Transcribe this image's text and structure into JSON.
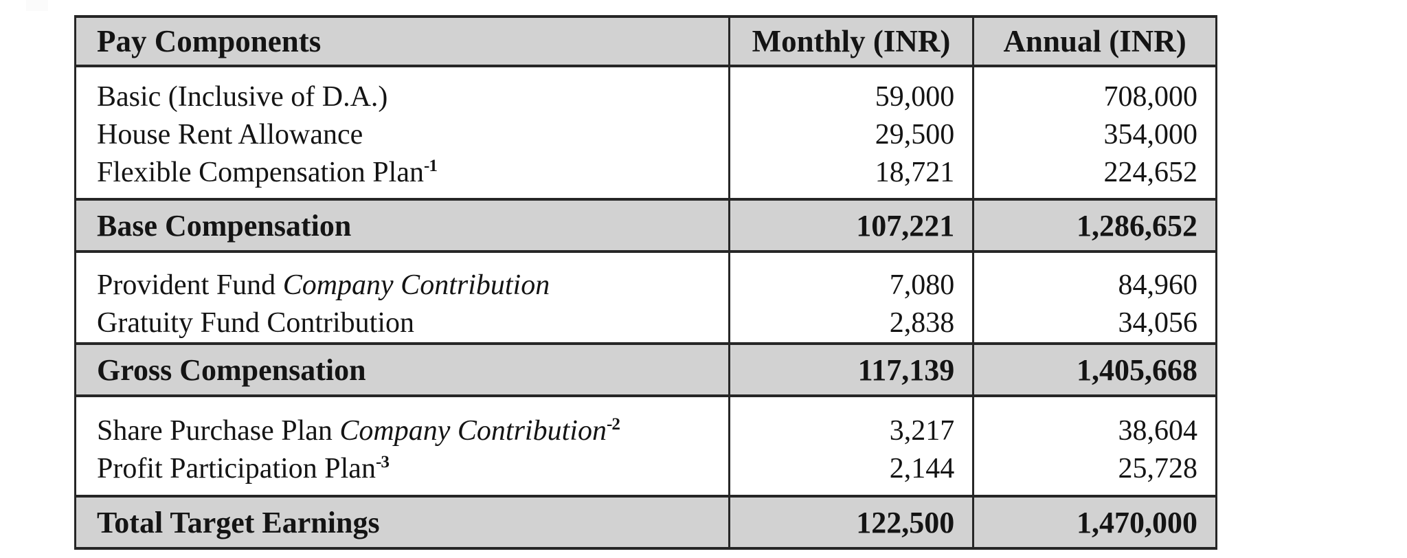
{
  "colors": {
    "band_bg": "#d2d2d2",
    "border": "#262626",
    "text": "#141414",
    "page_bg": "#ffffff"
  },
  "table": {
    "headers": [
      "Pay Components",
      "Monthly (INR)",
      "Annual (INR)"
    ],
    "sections": [
      {
        "type": "detail",
        "rows": [
          {
            "label": "Basic (Inclusive of D.A.)",
            "monthly": "59,000",
            "annual": "708,000"
          },
          {
            "label": "House Rent Allowance",
            "monthly": "29,500",
            "annual": "354,000"
          },
          {
            "label": "Flexible Compensation Plan",
            "label_sup": "-1",
            "monthly": "18,721",
            "annual": "224,652"
          }
        ]
      },
      {
        "type": "summary",
        "label": "Base Compensation",
        "monthly": "107,221",
        "annual": "1,286,652"
      },
      {
        "type": "detail",
        "rows": [
          {
            "label": "Provident Fund ",
            "label_italic": "Company Contribution",
            "monthly": "7,080",
            "annual": "84,960"
          },
          {
            "label": "Gratuity Fund Contribution",
            "monthly": "2,838",
            "annual": "34,056"
          }
        ]
      },
      {
        "type": "summary",
        "label": "Gross Compensation",
        "monthly": "117,139",
        "annual": "1,405,668"
      },
      {
        "type": "detail",
        "rows": [
          {
            "label": "Share Purchase Plan ",
            "label_italic": "Company Contribution",
            "label_sup": "-2",
            "monthly": "3,217",
            "annual": "38,604"
          },
          {
            "label": "Profit Participation Plan",
            "label_sup": "-3",
            "monthly": "2,144",
            "annual": "25,728"
          }
        ]
      },
      {
        "type": "summary",
        "label": "Total Target Earnings",
        "monthly": "122,500",
        "annual": "1,470,000"
      }
    ]
  }
}
